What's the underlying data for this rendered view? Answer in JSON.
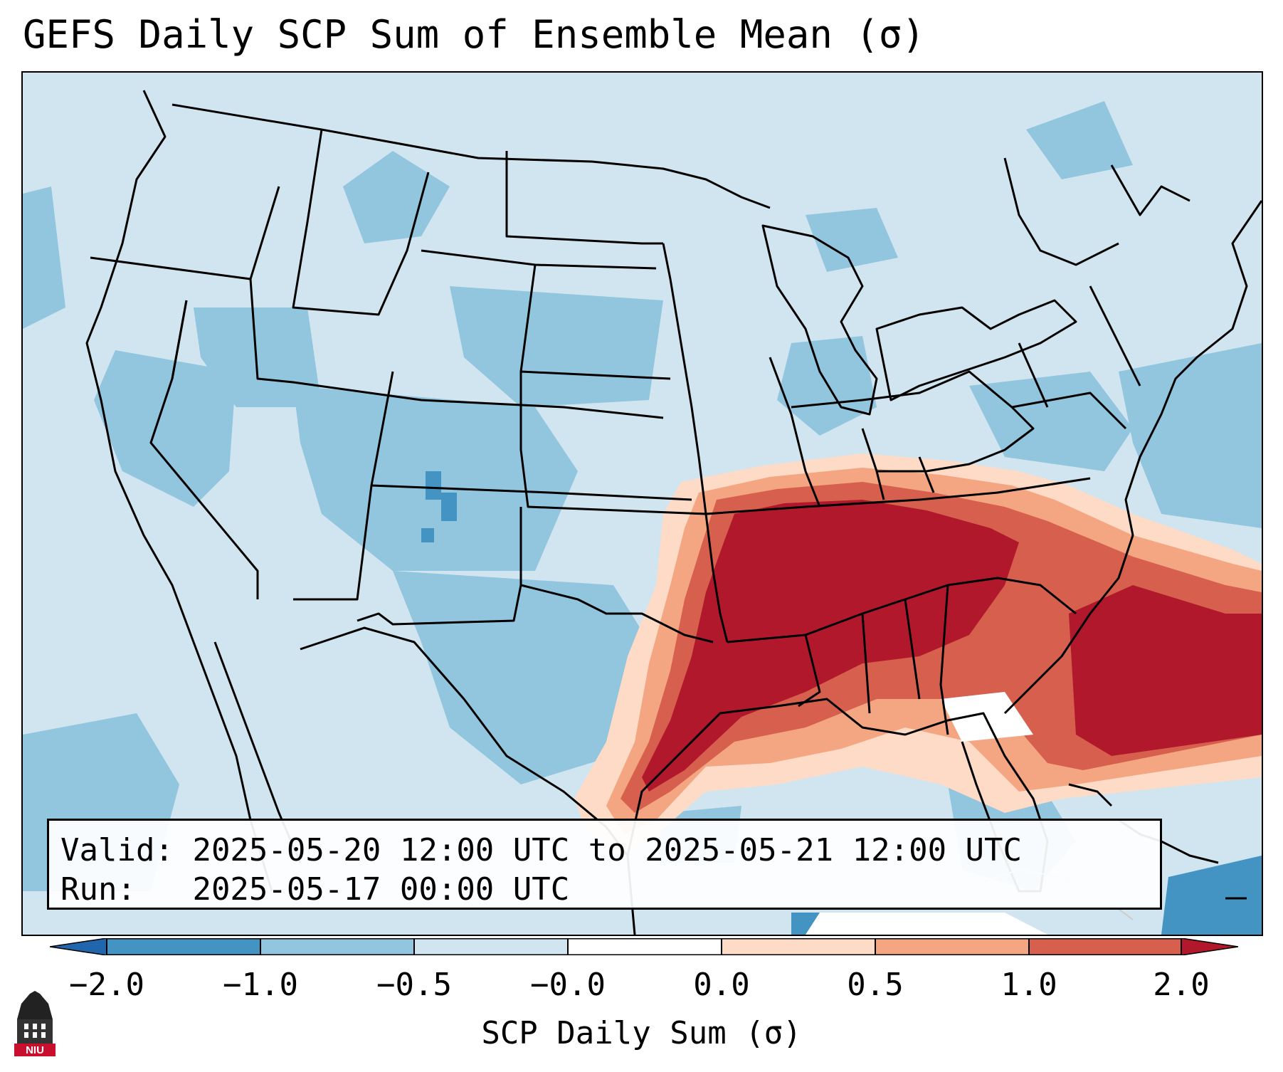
{
  "title": "GEFS Daily SCP Sum of Ensemble Mean (σ)",
  "info": {
    "valid_label": "Valid:",
    "valid_value": "2025-05-20 12:00 UTC to 2025-05-21 12:00 UTC",
    "run_label": "Run:",
    "run_value": "2025-05-17 00:00 UTC"
  },
  "colorbar": {
    "label": "SCP Daily Sum (σ)",
    "ticks": [
      "−2.0",
      "−1.0",
      "−0.5",
      "−0.0",
      "0.0",
      "0.5",
      "1.0",
      "2.0"
    ],
    "bin_colors": [
      "#4393c3",
      "#92c5de",
      "#d1e5f0",
      "#ffffff",
      "#fddbc7",
      "#f4a582",
      "#d6604d",
      "#b2182b"
    ],
    "extend_colors": {
      "min": "#2166ac",
      "max": "#b2182b"
    }
  },
  "map": {
    "region": "CONUS",
    "colors": {
      "very_low": "#4393c3",
      "low": "#92c5de",
      "slightly_low": "#d1e5f0",
      "neutral": "#ffffff",
      "slightly_high": "#fddbc7",
      "moderate_high": "#f4a582",
      "high": "#d6604d",
      "very_high": "#b2182b",
      "borders": "#000000"
    }
  },
  "logo": {
    "text": "NIU",
    "accent": "#c8102e"
  }
}
